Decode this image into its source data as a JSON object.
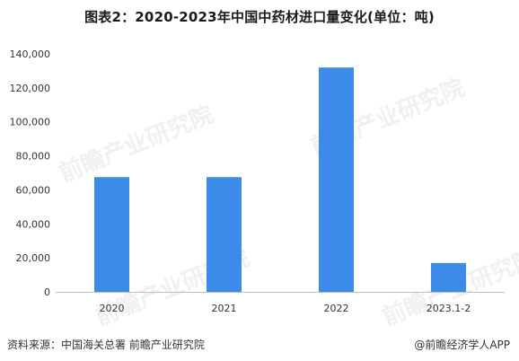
{
  "chart_data": {
    "type": "bar",
    "title": "图表2：2020-2023年中国中药材进口量变化(单位：吨)",
    "categories": [
      "2020",
      "2021",
      "2022",
      "2023.1-2"
    ],
    "values": [
      67500,
      67500,
      132000,
      17000
    ],
    "ylim": [
      0,
      140000
    ],
    "yticks": [
      "0",
      "20,000",
      "40,000",
      "60,000",
      "80,000",
      "100,000",
      "120,000",
      "140,000"
    ],
    "xlabel": "",
    "ylabel": "",
    "grid": false,
    "legend": "none",
    "bar_color": "#3C8BE8"
  },
  "footer": {
    "source": "资料来源：中国海关总署 前瞻产业研究院",
    "credit": "@前瞻经济学人APP"
  },
  "watermark_text": "前瞻产业研究院"
}
